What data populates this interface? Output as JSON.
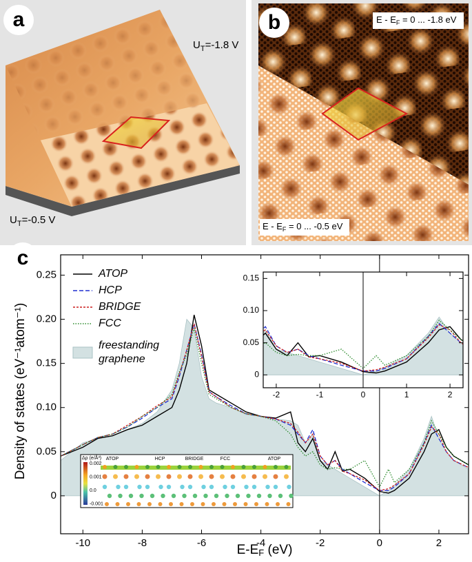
{
  "panels": {
    "a": "a",
    "b": "b",
    "c": "c"
  },
  "stm_a": {
    "top": {
      "main": "U",
      "sub": "T",
      "rest": "=-1.8 V"
    },
    "bottom": {
      "main": "U",
      "sub": "T",
      "rest": "=-0.5 V"
    }
  },
  "stm_b": {
    "top": {
      "main": "E - E",
      "sub": "F",
      "rest": " = 0 ... -1.8 eV"
    },
    "bottom": {
      "main": "E - E",
      "sub": "F",
      "rest": " = 0 ... -0.5 eV"
    }
  },
  "charge_inset": {
    "unit": "Δρ (e/Å³)",
    "scale": [
      "0.002",
      "0.001",
      "0.0",
      "-0.001"
    ],
    "sites": [
      "ATOP",
      "HCP",
      "BRIDGE",
      "FCC",
      "ATOP"
    ]
  },
  "chart_data": {
    "type": "line",
    "x_label": {
      "main": "E-E",
      "sub": "F",
      "rest": " (eV)"
    },
    "y_label": "Density of states (eV⁻¹atom⁻¹)",
    "xlim": [
      -10.75,
      3.0
    ],
    "ylim": [
      -0.043,
      0.273
    ],
    "xticks": [
      -10,
      -8,
      -6,
      -4,
      -2,
      0,
      2
    ],
    "yticks": [
      0,
      0.05,
      {
        "value": 0.1,
        "label": "0.10"
      },
      0.15,
      {
        "value": 0.2,
        "label": "0.20"
      },
      0.25
    ],
    "x": [
      -10.75,
      -10,
      -9.5,
      -9,
      -8.5,
      -8,
      -7.5,
      -7,
      -6.75,
      -6.5,
      -6.25,
      -6,
      -5.75,
      -5.5,
      -5,
      -4.5,
      -4,
      -3.5,
      -3,
      -2.75,
      -2.5,
      -2.25,
      -2,
      -1.75,
      -1.5,
      -1.25,
      -1,
      -0.5,
      0,
      0.3,
      0.5,
      1,
      1.5,
      1.75,
      2,
      2.25,
      2.5,
      3
    ],
    "series": [
      {
        "name": "ATOP",
        "color": "#000000",
        "dash": "solid",
        "values": [
          0.045,
          0.055,
          0.065,
          0.068,
          0.075,
          0.08,
          0.09,
          0.1,
          0.12,
          0.15,
          0.205,
          0.17,
          0.12,
          0.115,
          0.105,
          0.095,
          0.09,
          0.088,
          0.095,
          0.06,
          0.05,
          0.065,
          0.04,
          0.03,
          0.05,
          0.028,
          0.03,
          0.02,
          0.005,
          0.003,
          0.006,
          0.02,
          0.05,
          0.07,
          0.075,
          0.055,
          0.045,
          0.035
        ]
      },
      {
        "name": "HCP",
        "color": "#1f2fd0",
        "dash": "dashed",
        "values": [
          0.045,
          0.058,
          0.066,
          0.07,
          0.078,
          0.088,
          0.1,
          0.11,
          0.135,
          0.165,
          0.195,
          0.16,
          0.118,
          0.112,
          0.102,
          0.093,
          0.09,
          0.087,
          0.08,
          0.07,
          0.06,
          0.075,
          0.045,
          0.035,
          0.04,
          0.03,
          0.025,
          0.015,
          0.006,
          0.006,
          0.01,
          0.025,
          0.06,
          0.08,
          0.065,
          0.05,
          0.04,
          0.032
        ]
      },
      {
        "name": "BRIDGE",
        "color": "#cc1f1f",
        "dash": "short",
        "values": [
          0.045,
          0.058,
          0.066,
          0.07,
          0.08,
          0.09,
          0.102,
          0.112,
          0.138,
          0.165,
          0.195,
          0.158,
          0.118,
          0.112,
          0.1,
          0.093,
          0.09,
          0.087,
          0.082,
          0.072,
          0.06,
          0.07,
          0.045,
          0.035,
          0.04,
          0.028,
          0.025,
          0.018,
          0.006,
          0.008,
          0.012,
          0.025,
          0.058,
          0.078,
          0.07,
          0.05,
          0.04,
          0.032
        ]
      },
      {
        "name": "FCC",
        "color": "#2a8a2a",
        "dash": "dotted",
        "values": [
          0.045,
          0.058,
          0.066,
          0.07,
          0.078,
          0.09,
          0.1,
          0.115,
          0.14,
          0.16,
          0.19,
          0.15,
          0.115,
          0.11,
          0.1,
          0.093,
          0.09,
          0.085,
          0.07,
          0.055,
          0.045,
          0.05,
          0.035,
          0.03,
          0.032,
          0.03,
          0.03,
          0.04,
          0.01,
          0.03,
          0.015,
          0.03,
          0.06,
          0.085,
          0.07,
          0.055,
          0.045,
          0.035
        ]
      },
      {
        "name": "freestanding graphene",
        "color": "#d3e1e2",
        "dash": "area",
        "values": [
          0.04,
          0.06,
          0.065,
          0.068,
          0.075,
          0.082,
          0.095,
          0.12,
          0.15,
          0.2,
          0.19,
          0.135,
          0.11,
          0.105,
          0.1,
          0.092,
          0.09,
          0.087,
          0.085,
          0.08,
          0.06,
          0.07,
          0.04,
          0.035,
          0.03,
          0.025,
          0.02,
          0.01,
          0.0,
          0.006,
          0.012,
          0.03,
          0.065,
          0.09,
          0.065,
          0.05,
          0.04,
          0.03
        ]
      }
    ],
    "inset": {
      "xlim": [
        -2.3,
        2.3
      ],
      "ylim": [
        -0.02,
        0.16
      ],
      "xticks": [
        -2,
        -1,
        0,
        1,
        2
      ],
      "yticks": [
        0,
        0.05,
        {
          "value": 0.1,
          "label": "0.10"
        },
        0.15
      ]
    }
  }
}
